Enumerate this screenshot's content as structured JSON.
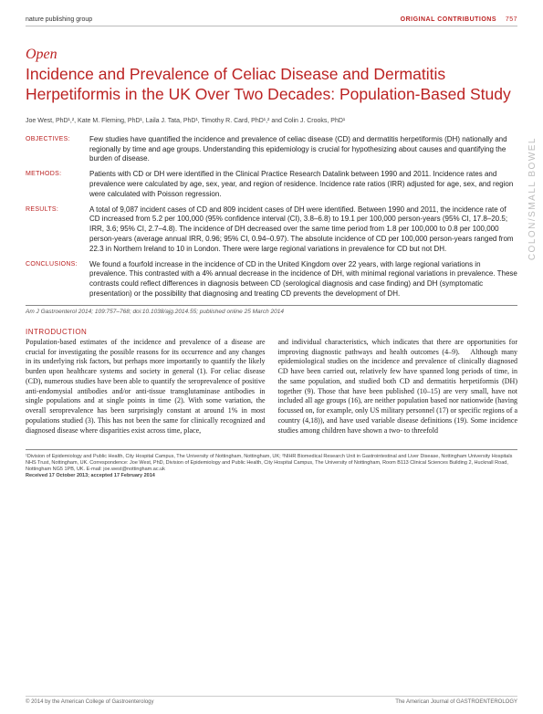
{
  "header": {
    "publisher": "nature publishing group",
    "section_label": "ORIGINAL CONTRIBUTIONS",
    "page_number": "757"
  },
  "sidetab": "COLON/SMALL BOWEL",
  "open_label": "Open",
  "title": "Incidence and Prevalence of Celiac Disease and Dermatitis Herpetiformis in the UK Over Two Decades: Population-Based Study",
  "authors": "Joe West, PhD¹,², Kate M. Fleming, PhD¹, Laila J. Tata, PhD¹, Timothy R. Card, PhD¹,² and Colin J. Crooks, PhD¹",
  "abstract": {
    "objectives": {
      "label": "OBJECTIVES:",
      "text": "Few studies have quantified the incidence and prevalence of celiac disease (CD) and dermatitis herpetiformis (DH) nationally and regionally by time and age groups. Understanding this epidemiology is crucial for hypothesizing about causes and quantifying the burden of disease."
    },
    "methods": {
      "label": "METHODS:",
      "text": "Patients with CD or DH were identified in the Clinical Practice Research Datalink between 1990 and 2011. Incidence rates and prevalence were calculated by age, sex, year, and region of residence. Incidence rate ratios (IRR) adjusted for age, sex, and region were calculated with Poisson regression."
    },
    "results": {
      "label": "RESULTS:",
      "text": "A total of 9,087 incident cases of CD and 809 incident cases of DH were identified. Between 1990 and 2011, the incidence rate of CD increased from 5.2 per 100,000 (95% confidence interval (CI), 3.8–6.8) to 19.1 per 100,000 person-years (95% CI, 17.8–20.5; IRR, 3.6; 95% CI, 2.7–4.8). The incidence of DH decreased over the same time period from 1.8 per 100,000 to 0.8 per 100,000 person-years (average annual IRR, 0.96; 95% CI, 0.94–0.97). The absolute incidence of CD per 100,000 person-years ranged from 22.3 in Northern Ireland to 10 in London. There were large regional variations in prevalence for CD but not DH."
    },
    "conclusions": {
      "label": "CONCLUSIONS:",
      "text": "We found a fourfold increase in the incidence of CD in the United Kingdom over 22 years, with large regional variations in prevalence. This contrasted with a 4% annual decrease in the incidence of DH, with minimal regional variations in prevalence. These contrasts could reflect differences in diagnosis between CD (serological diagnosis and case finding) and DH (symptomatic presentation) or the possibility that diagnosing and treating CD prevents the development of DH."
    }
  },
  "citation": "Am J Gastroenterol 2014; 109:757–768; doi:10.1038/ajg.2014.55; published online 25 March 2014",
  "intro_heading": "INTRODUCTION",
  "columns": {
    "left": "Population-based estimates of the incidence and prevalence of a disease are crucial for investigating the possible reasons for its occurrence and any changes in its underlying risk factors, but perhaps more importantly to quantify the likely burden upon healthcare systems and society in general (1). For celiac disease (CD), numerous studies have been able to quantify the seroprevalence of positive anti-endomysial antibodies and/or anti-tissue transglutaminase antibodies in single populations and at single points in time (2). With some variation, the overall seroprevalence has been surprisingly constant at around 1% in most populations studied (3). This has not been the same for clinically recognized and diagnosed disease where disparities exist across time, place,",
    "right": "and individual characteristics, which indicates that there are opportunities for improving diagnostic pathways and health outcomes (4–9).\n Although many epidemiological studies on the incidence and prevalence of clinically diagnosed CD have been carried out, relatively few have spanned long periods of time, in the same population, and studied both CD and dermatitis herpetiformis (DH) together (9). Those that have been published (10–15) are very small, have not included all age groups (16), are neither population based nor nationwide (having focussed on, for example, only US military personnel (17) or specific regions of a country (4,18)), and have used variable disease definitions (19). Some incidence studies among children have shown a two- to threefold"
  },
  "affiliations": "¹Division of Epidemiology and Public Health, City Hospital Campus, The University of Nottingham, Nottingham, UK; ²NIHR Biomedical Research Unit in Gastrointestinal and Liver Disease, Nottingham University Hospitals NHS Trust, Nottingham, UK. Correspondence: Joe West, PhD, Division of Epidemiology and Public Health, City Hospital Campus, The University of Nottingham, Room B113 Clinical Sciences Building 2, Hucknall Road, Nottingham NG5 1PB, UK. E-mail: joe.west@nottingham.ac.uk",
  "received": "Received 17 October 2013; accepted 17 February 2014",
  "footer": {
    "left": "© 2014 by the American College of Gastroenterology",
    "right": "The American Journal of GASTROENTEROLOGY"
  },
  "colors": {
    "accent": "#b22222",
    "text": "#222222",
    "muted": "#888888",
    "sidetab": "#bbbbbb"
  }
}
